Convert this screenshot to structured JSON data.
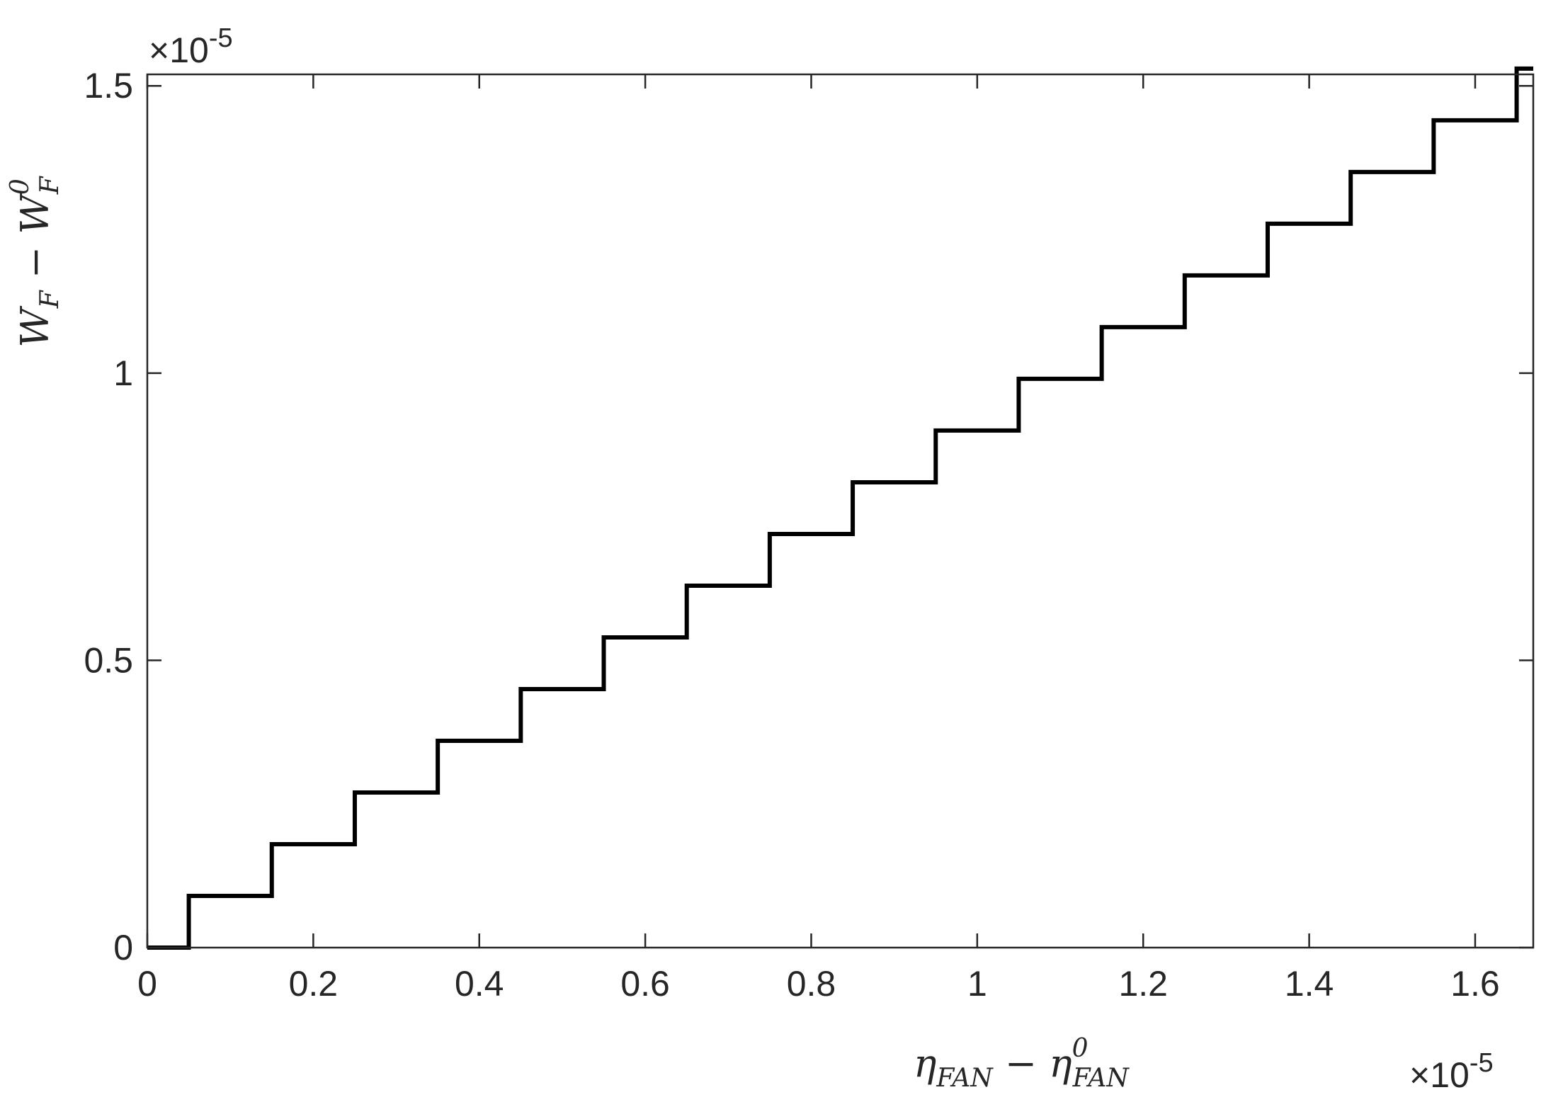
{
  "chart_data": {
    "type": "line",
    "title": "",
    "xlabel": {
      "main": "η",
      "sub": "FAN",
      "minus": " − ",
      "main2": "η",
      "sup2": "0",
      "sub2": "FAN"
    },
    "ylabel": {
      "main": "W",
      "sub": "F",
      "minus": " − ",
      "main2": "W",
      "sup2": "0",
      "sub2": "F"
    },
    "x_exponent": {
      "prefix": "×10",
      "power": "-5"
    },
    "y_exponent": {
      "prefix": "×10",
      "power": "-5"
    },
    "xlim": [
      0,
      1.67
    ],
    "ylim": [
      0,
      1.52
    ],
    "xticks": [
      0,
      0.2,
      0.4,
      0.6,
      0.8,
      1,
      1.2,
      1.4,
      1.6
    ],
    "xtick_labels": [
      "0",
      "0.2",
      "0.4",
      "0.6",
      "0.8",
      "1",
      "1.2",
      "1.4",
      "1.6"
    ],
    "yticks": [
      0,
      0.5,
      1,
      1.5
    ],
    "ytick_labels": [
      "0",
      "0.5",
      "1",
      "1.5"
    ],
    "grid": false,
    "series": [
      {
        "style": "step",
        "color": "#000000",
        "x": [
          0,
          0.05,
          0.15,
          0.25,
          0.35,
          0.45,
          0.55,
          0.65,
          0.75,
          0.85,
          0.95,
          1.05,
          1.15,
          1.25,
          1.35,
          1.45,
          1.55,
          1.65,
          1.67
        ],
        "y": [
          0,
          0.09,
          0.18,
          0.27,
          0.36,
          0.45,
          0.54,
          0.63,
          0.72,
          0.81,
          0.9,
          0.99,
          1.08,
          1.17,
          1.26,
          1.35,
          1.44,
          1.53,
          1.53
        ]
      }
    ]
  }
}
